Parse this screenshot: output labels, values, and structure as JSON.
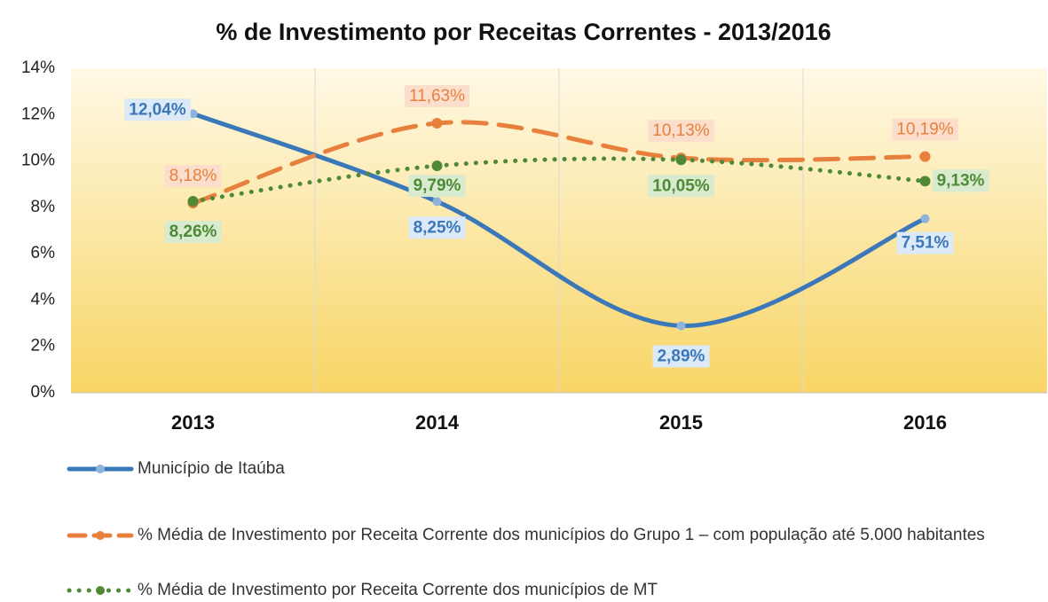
{
  "chart_data": {
    "type": "line",
    "title": "% de Investimento por Receitas Correntes - 2013/2016",
    "categories": [
      "2013",
      "2014",
      "2015",
      "2016"
    ],
    "series": [
      {
        "name": "Município de Itaúba",
        "color": "#3b78b9",
        "style": "solid",
        "values": [
          12.04,
          8.25,
          2.89,
          7.51
        ],
        "value_labels": [
          "12,04%",
          "8,25%",
          "2,89%",
          "7,51%"
        ]
      },
      {
        "name": "% Média  de Investimento  por Receita Corrente dos municípios do Grupo 1 – com população até 5.000 habitantes",
        "color": "#e8803d",
        "style": "dashed",
        "values": [
          8.18,
          11.63,
          10.13,
          10.19
        ],
        "value_labels": [
          "8,18%",
          "11,63%",
          "10,13%",
          "10,19%"
        ]
      },
      {
        "name": "% Média de Investimento por Receita Corrente dos municípios de MT",
        "color": "#4e8a35",
        "style": "dotted",
        "values": [
          8.26,
          9.79,
          10.05,
          9.13
        ],
        "value_labels": [
          "8,26%",
          "9,79%",
          "10,05%",
          "9,13%"
        ]
      }
    ],
    "ylim": [
      0,
      14
    ],
    "yticks": [
      {
        "value": 0,
        "label": "0%"
      },
      {
        "value": 2,
        "label": "2%"
      },
      {
        "value": 4,
        "label": "4%"
      },
      {
        "value": 6,
        "label": "6%"
      },
      {
        "value": 8,
        "label": "8%"
      },
      {
        "value": 10,
        "label": "10%"
      },
      {
        "value": 12,
        "label": "12%"
      },
      {
        "value": 14,
        "label": "14%"
      }
    ],
    "grid": true
  }
}
